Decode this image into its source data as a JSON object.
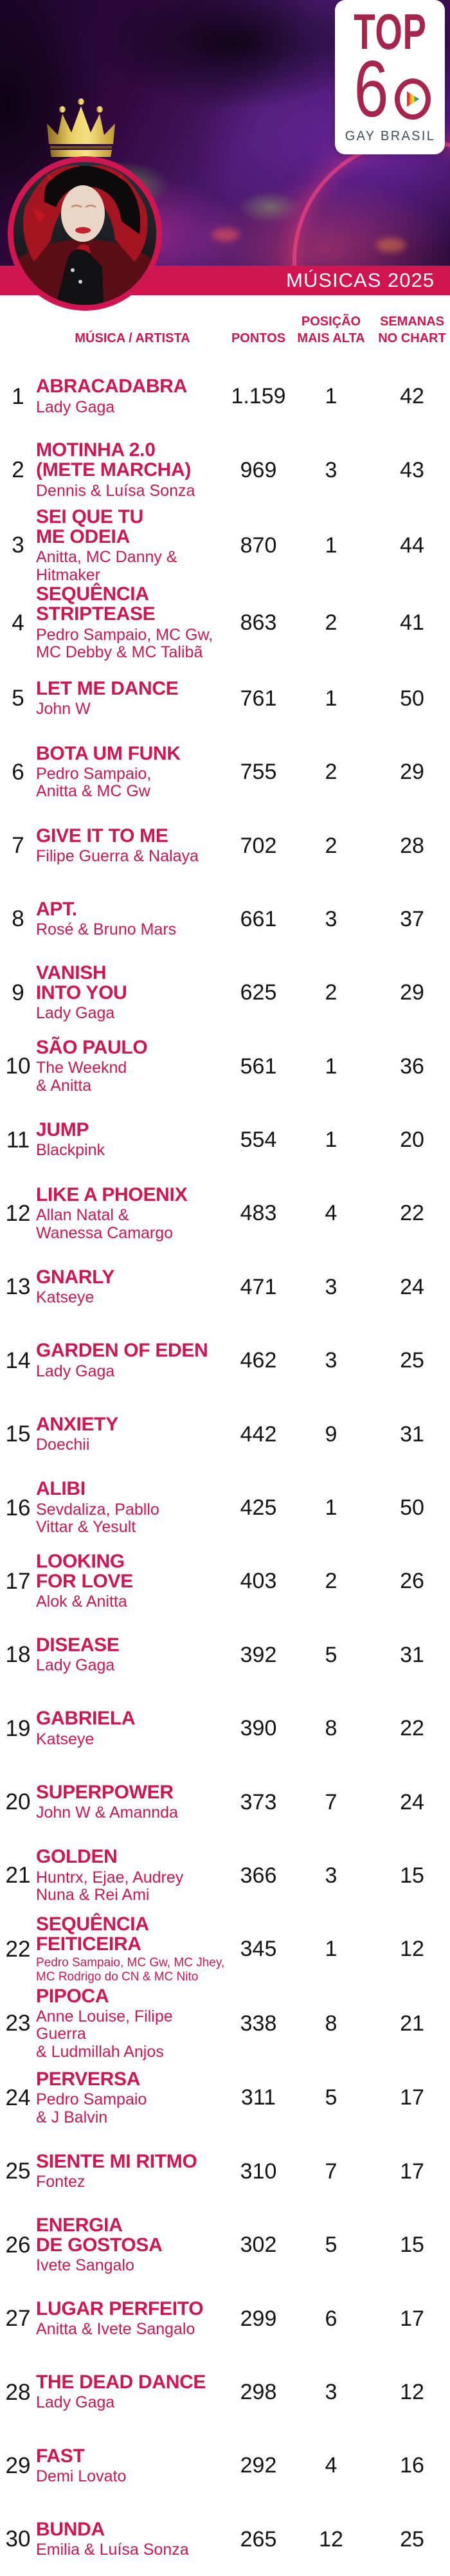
{
  "logo": {
    "wordmark": "TOP",
    "number": "6",
    "subtitle": "GAY BRASIL"
  },
  "banner": {
    "title": "MÚSICAS 2025"
  },
  "columns": {
    "song": "MÚSICA / ARTISTA",
    "points": "PONTOS",
    "peak": [
      "POSIÇÃO",
      "MAIS ALTA"
    ],
    "weeks": [
      "SEMANAS",
      "NO CHART"
    ]
  },
  "colors": {
    "accent": "#d01550",
    "logo_crimson": "#a8244c",
    "logo_gray": "#454c59",
    "number_black": "#141414",
    "crown_gold": "#d9a93a"
  },
  "rows": [
    {
      "rank": "1",
      "title": [
        "ABRACADABRA"
      ],
      "artist": [
        "Lady Gaga"
      ],
      "points": "1.159",
      "peak": "1",
      "weeks": "42"
    },
    {
      "rank": "2",
      "title": [
        "MOTINHA 2.0",
        "(METE MARCHA)"
      ],
      "artist": [
        "Dennis & Luísa Sonza"
      ],
      "points": "969",
      "peak": "3",
      "weeks": "43"
    },
    {
      "rank": "3",
      "title": [
        "SEI QUE TU",
        "ME ODEIA"
      ],
      "artist": [
        "Anitta, MC Danny &",
        "Hitmaker"
      ],
      "points": "870",
      "peak": "1",
      "weeks": "44"
    },
    {
      "rank": "4",
      "title": [
        "SEQUÊNCIA",
        "STRIPTEASE"
      ],
      "artist": [
        "Pedro Sampaio, MC Gw,",
        "MC Debby & MC Talibã"
      ],
      "points": "863",
      "peak": "2",
      "weeks": "41"
    },
    {
      "rank": "5",
      "title": [
        "LET ME DANCE"
      ],
      "artist": [
        "John W"
      ],
      "points": "761",
      "peak": "1",
      "weeks": "50"
    },
    {
      "rank": "6",
      "title": [
        "BOTA UM FUNK"
      ],
      "artist": [
        "Pedro Sampaio,",
        "Anitta & MC Gw"
      ],
      "points": "755",
      "peak": "2",
      "weeks": "29"
    },
    {
      "rank": "7",
      "title": [
        "GIVE IT TO ME"
      ],
      "artist": [
        "Filipe Guerra & Nalaya"
      ],
      "points": "702",
      "peak": "2",
      "weeks": "28"
    },
    {
      "rank": "8",
      "title": [
        "APT."
      ],
      "artist": [
        "Rosé & Bruno Mars"
      ],
      "points": "661",
      "peak": "3",
      "weeks": "37"
    },
    {
      "rank": "9",
      "title": [
        "VANISH",
        "INTO YOU"
      ],
      "artist": [
        "Lady Gaga"
      ],
      "points": "625",
      "peak": "2",
      "weeks": "29"
    },
    {
      "rank": "10",
      "title": [
        "SÃO PAULO"
      ],
      "artist": [
        "The Weeknd",
        "& Anitta"
      ],
      "points": "561",
      "peak": "1",
      "weeks": "36"
    },
    {
      "rank": "11",
      "title": [
        "JUMP"
      ],
      "artist": [
        "Blackpink"
      ],
      "points": "554",
      "peak": "1",
      "weeks": "20"
    },
    {
      "rank": "12",
      "title": [
        "LIKE A PHOENIX"
      ],
      "artist": [
        "Allan Natal &",
        "Wanessa Camargo"
      ],
      "points": "483",
      "peak": "4",
      "weeks": "22"
    },
    {
      "rank": "13",
      "title": [
        "GNARLY"
      ],
      "artist": [
        "Katseye"
      ],
      "points": "471",
      "peak": "3",
      "weeks": "24"
    },
    {
      "rank": "14",
      "title": [
        "GARDEN OF EDEN"
      ],
      "artist": [
        "Lady Gaga"
      ],
      "points": "462",
      "peak": "3",
      "weeks": "25"
    },
    {
      "rank": "15",
      "title": [
        "ANXIETY"
      ],
      "artist": [
        "Doechii"
      ],
      "points": "442",
      "peak": "9",
      "weeks": "31"
    },
    {
      "rank": "16",
      "title": [
        "ALIBI"
      ],
      "artist": [
        "Sevdaliza, Pabllo",
        "Vittar & Yesult"
      ],
      "points": "425",
      "peak": "1",
      "weeks": "50"
    },
    {
      "rank": "17",
      "title": [
        "LOOKING",
        "FOR LOVE"
      ],
      "artist": [
        "Alok & Anitta"
      ],
      "points": "403",
      "peak": "2",
      "weeks": "26"
    },
    {
      "rank": "18",
      "title": [
        "DISEASE"
      ],
      "artist": [
        "Lady Gaga"
      ],
      "points": "392",
      "peak": "5",
      "weeks": "31"
    },
    {
      "rank": "19",
      "title": [
        "GABRIELA"
      ],
      "artist": [
        "Katseye"
      ],
      "points": "390",
      "peak": "8",
      "weeks": "22"
    },
    {
      "rank": "20",
      "title": [
        "SUPERPOWER"
      ],
      "artist": [
        "John W & Amannda"
      ],
      "points": "373",
      "peak": "7",
      "weeks": "24"
    },
    {
      "rank": "21",
      "title": [
        "GOLDEN"
      ],
      "artist": [
        "Huntrx, Ejae, Audrey",
        "Nuna & Rei Ami"
      ],
      "points": "366",
      "peak": "3",
      "weeks": "15"
    },
    {
      "rank": "22",
      "title": [
        "SEQUÊNCIA",
        "FEITICEIRA"
      ],
      "artist": [
        "Pedro Sampaio, MC Gw, MC Jhey,",
        "MC Rodrigo do CN & MC Nito"
      ],
      "points": "345",
      "peak": "1",
      "weeks": "12",
      "compact": true
    },
    {
      "rank": "23",
      "title": [
        "PIPOCA"
      ],
      "artist": [
        "Anne Louise, Filipe Guerra",
        "& Ludmillah Anjos"
      ],
      "points": "338",
      "peak": "8",
      "weeks": "21"
    },
    {
      "rank": "24",
      "title": [
        "PERVERSA"
      ],
      "artist": [
        "Pedro Sampaio",
        "& J Balvin"
      ],
      "points": "311",
      "peak": "5",
      "weeks": "17"
    },
    {
      "rank": "25",
      "title": [
        "SIENTE MI RITMO"
      ],
      "artist": [
        "Fontez"
      ],
      "points": "310",
      "peak": "7",
      "weeks": "17"
    },
    {
      "rank": "26",
      "title": [
        "ENERGIA",
        "DE GOSTOSA"
      ],
      "artist": [
        "Ivete Sangalo"
      ],
      "points": "302",
      "peak": "5",
      "weeks": "15"
    },
    {
      "rank": "27",
      "title": [
        "LUGAR PERFEITO"
      ],
      "artist": [
        "Anitta & Ivete Sangalo"
      ],
      "points": "299",
      "peak": "6",
      "weeks": "17"
    },
    {
      "rank": "28",
      "title": [
        "THE DEAD DANCE"
      ],
      "artist": [
        "Lady Gaga"
      ],
      "points": "298",
      "peak": "3",
      "weeks": "12"
    },
    {
      "rank": "29",
      "title": [
        "FAST"
      ],
      "artist": [
        "Demi Lovato"
      ],
      "points": "292",
      "peak": "4",
      "weeks": "16"
    },
    {
      "rank": "30",
      "title": [
        "BUNDA"
      ],
      "artist": [
        "Emilia & Luísa Sonza"
      ],
      "points": "265",
      "peak": "12",
      "weeks": "25"
    }
  ]
}
